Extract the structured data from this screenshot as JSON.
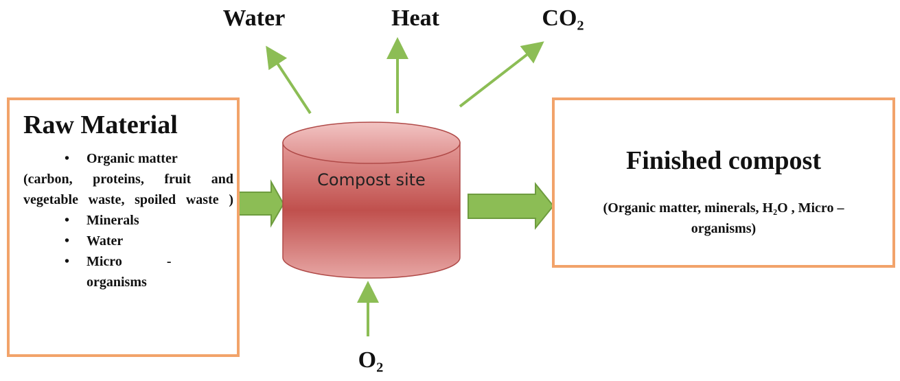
{
  "outputs": [
    "Water",
    "Heat",
    "CO₂"
  ],
  "input": "O₂",
  "raw_material": {
    "title": "Raw Material",
    "items": [
      "Organic matter",
      "(carbon, proteins, fruit and vegetable waste, spoiled waste )",
      "Minerals",
      "Water",
      "Micro - organisms"
    ]
  },
  "compost_site": {
    "label": "Compost site"
  },
  "finished_compost": {
    "title": "Finished compost",
    "details": "(Organic matter, minerals, H₂O , Micro –organisms)"
  }
}
